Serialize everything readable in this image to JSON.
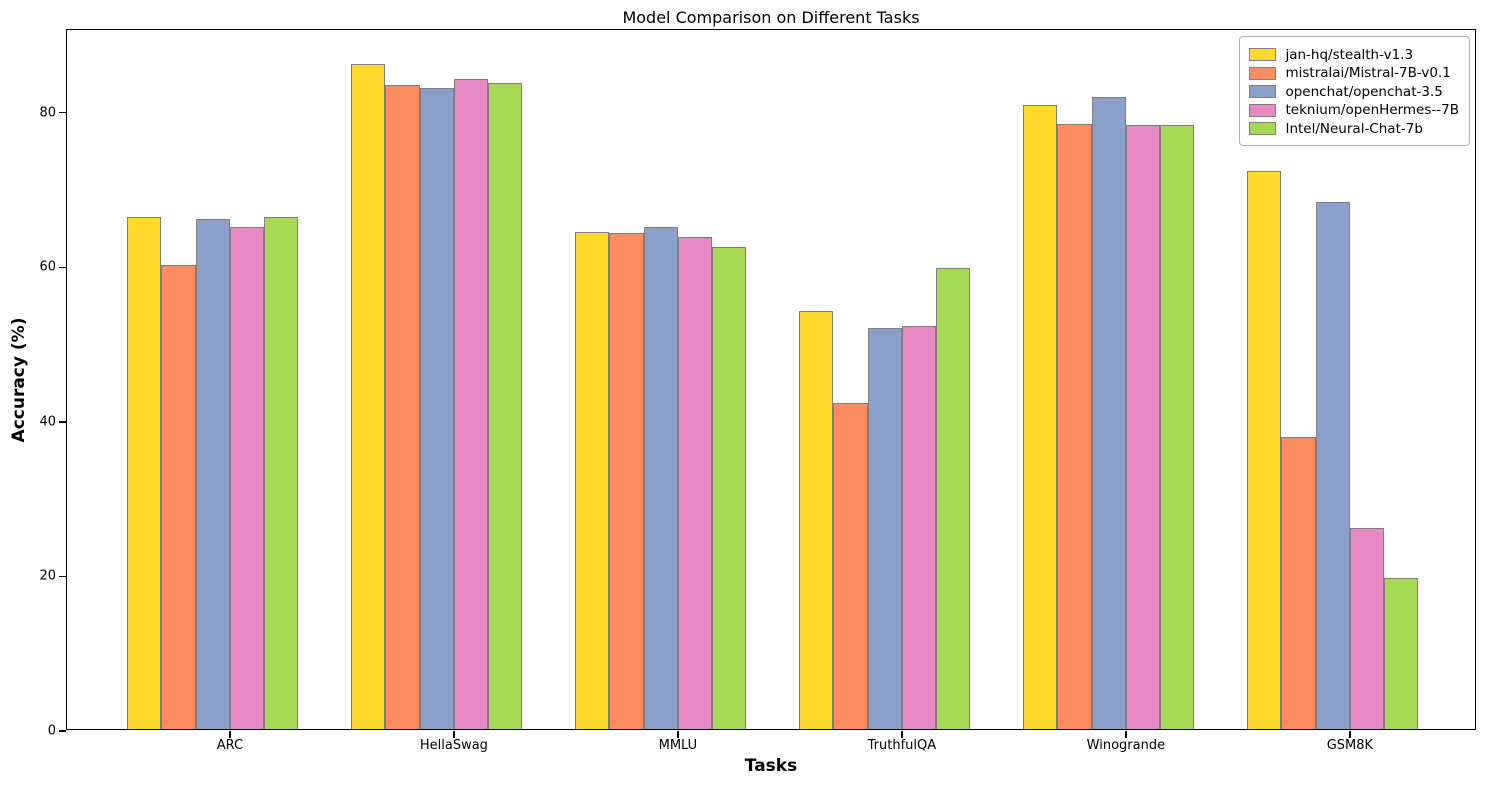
{
  "figure": {
    "title": "Model Comparison on Different Tasks",
    "xlabel": "Tasks",
    "ylabel": "Accuracy (%)"
  },
  "chart_data": {
    "type": "bar",
    "title": "Model Comparison on Different Tasks",
    "xlabel": "Tasks",
    "ylabel": "Accuracy (%)",
    "categories": [
      "ARC",
      "HellaSwag",
      "MMLU",
      "TruthfulQA",
      "Winogrande",
      "GSM8K"
    ],
    "series": [
      {
        "name": "jan-hq/stealth-v1.3",
        "color": "#FFD92F",
        "values": [
          66.3,
          86.0,
          64.3,
          54.1,
          80.7,
          72.2
        ]
      },
      {
        "name": "mistralai/Mistral-7B-v0.1",
        "color": "#FC8D62",
        "values": [
          60.0,
          83.3,
          64.2,
          42.2,
          78.3,
          37.8
        ]
      },
      {
        "name": "openchat/openchat-3.5",
        "color": "#8DA0CB",
        "values": [
          66.0,
          83.0,
          65.0,
          51.9,
          81.8,
          68.2
        ]
      },
      {
        "name": "teknium/openHermes--7B",
        "color": "#E78AC3",
        "values": [
          64.9,
          84.1,
          63.7,
          52.2,
          78.1,
          26.0
        ]
      },
      {
        "name": "Intel/Neural-Chat-7b",
        "color": "#A6D854",
        "values": [
          66.2,
          83.6,
          62.4,
          59.7,
          78.2,
          19.5
        ]
      }
    ],
    "yticks": [
      0,
      20,
      40,
      60,
      80
    ],
    "ylim": [
      0,
      90.7
    ],
    "bar_edge_color": "#7f7f7f",
    "legend_position": "upper right",
    "grid": false
  }
}
